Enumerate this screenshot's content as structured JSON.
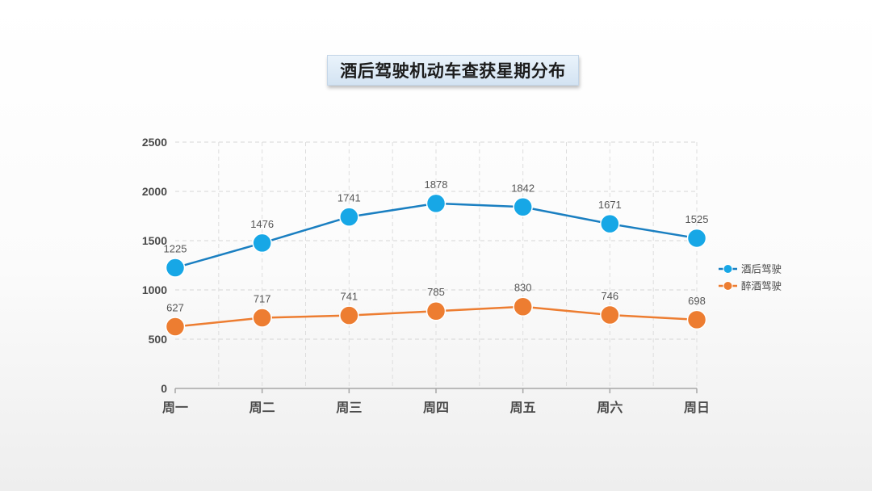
{
  "chart_data": {
    "type": "line",
    "title": "酒后驾驶机动车查获星期分布",
    "categories": [
      "周一",
      "周二",
      "周三",
      "周四",
      "周五",
      "周六",
      "周日"
    ],
    "ylim": [
      0,
      2500
    ],
    "yticks": [
      0,
      500,
      1000,
      1500,
      2000,
      2500
    ],
    "grid": true,
    "legend_position": "right",
    "series": [
      {
        "name": "酒后驾驶",
        "values": [
          1225,
          1476,
          1741,
          1878,
          1842,
          1671,
          1525
        ],
        "color": "#1a7fc1",
        "marker_color": "#17a7e6"
      },
      {
        "name": "醉酒驾驶",
        "values": [
          627,
          717,
          741,
          785,
          830,
          746,
          698
        ],
        "color": "#ed7d31",
        "marker_color": "#ed7d31"
      }
    ]
  }
}
